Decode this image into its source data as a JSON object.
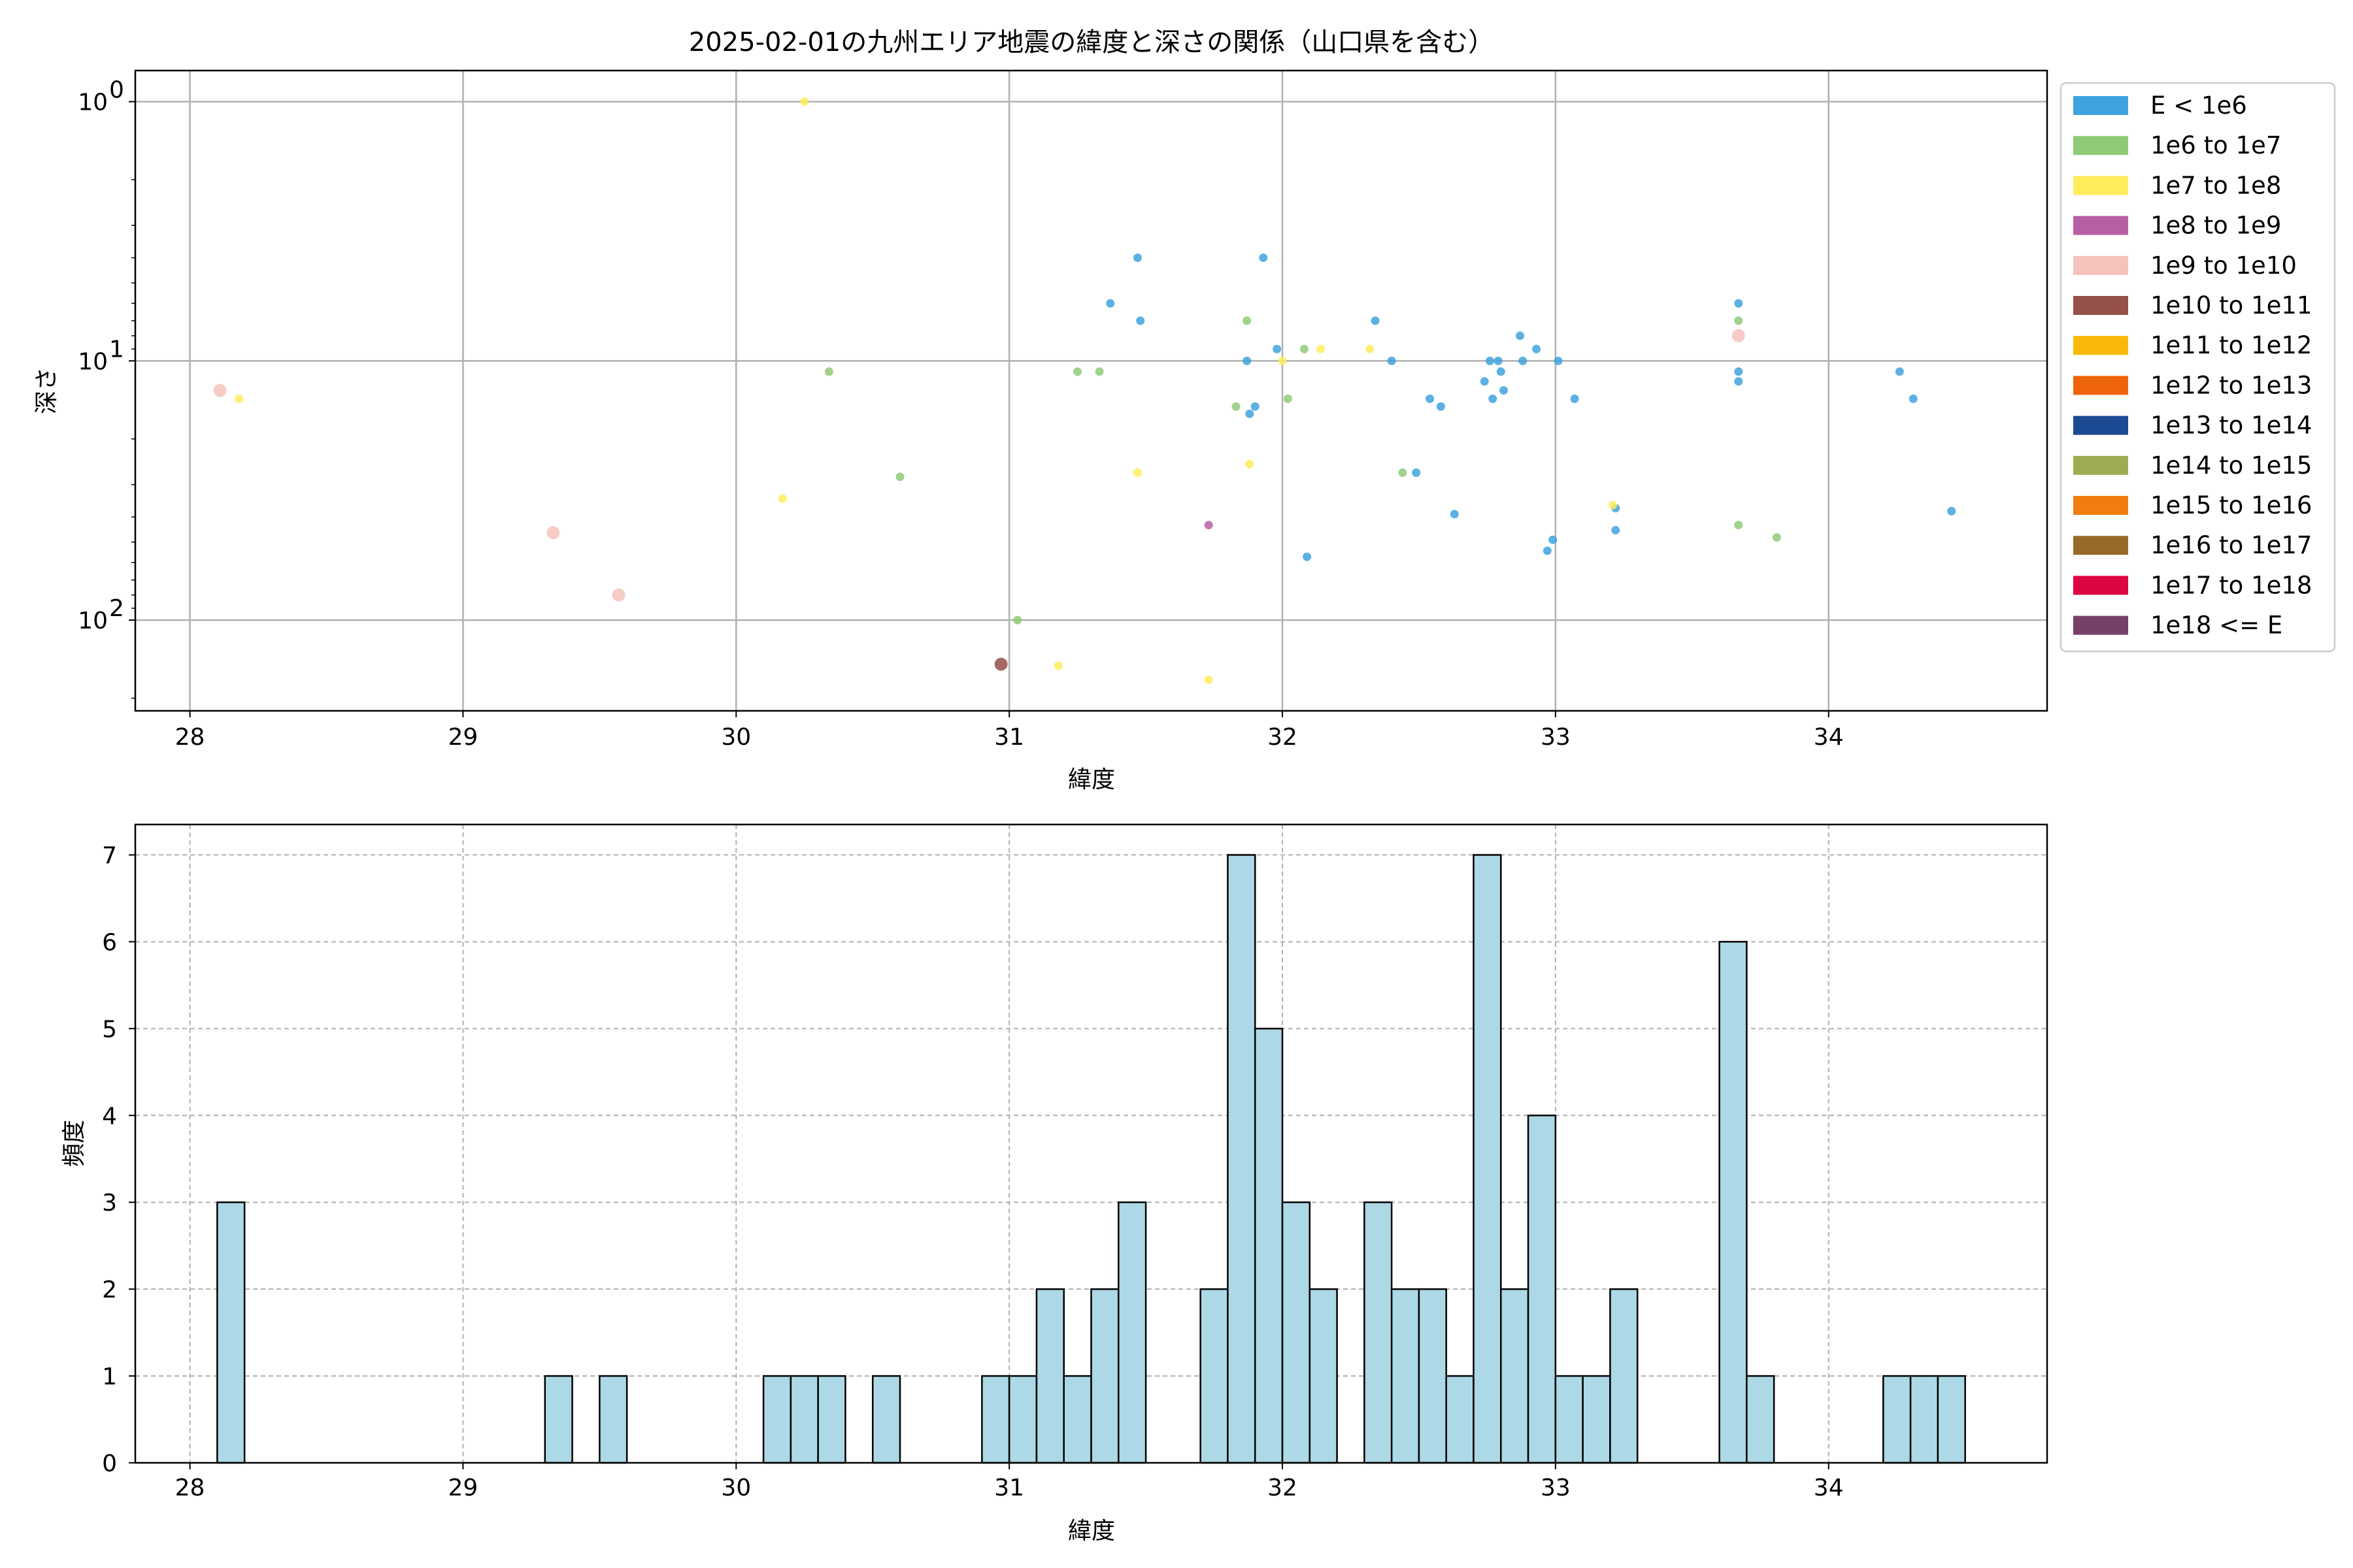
{
  "chart_data": [
    {
      "type": "scatter",
      "title": "2025-02-01の九州エリア地震の緯度と深さの関係（山口県を含む）",
      "xlabel": "緯度",
      "ylabel": "深さ",
      "xlim": [
        27.8,
        34.8
      ],
      "ylim_log10": [
        2.35,
        -0.12
      ],
      "y_log_scale": true,
      "y_inverted": true,
      "grid": true,
      "xticks": [
        {
          "value": 28,
          "label": "28"
        },
        {
          "value": 29,
          "label": "29"
        },
        {
          "value": 30,
          "label": "30"
        },
        {
          "value": 31,
          "label": "31"
        },
        {
          "value": 32,
          "label": "32"
        },
        {
          "value": 33,
          "label": "33"
        },
        {
          "value": 34,
          "label": "34"
        }
      ],
      "yticks": [
        {
          "value": 1,
          "base": "10",
          "exp": "0"
        },
        {
          "value": 10,
          "base": "10",
          "exp": "1"
        },
        {
          "value": 100,
          "base": "10",
          "exp": "2"
        }
      ],
      "legend_position": "outside-right",
      "legend": [
        {
          "label": "E < 1e6",
          "color": "#3fa3dd"
        },
        {
          "label": "1e6 to 1e7",
          "color": "#8fca77"
        },
        {
          "label": "1e7 to 1e8",
          "color": "#ffec5a"
        },
        {
          "label": "1e8 to 1e9",
          "color": "#b65fa5"
        },
        {
          "label": "1e9 to 1e10",
          "color": "#f6c2bc"
        },
        {
          "label": "1e10 to 1e11",
          "color": "#955049"
        },
        {
          "label": "1e11 to 1e12",
          "color": "#f9b90a"
        },
        {
          "label": "1e12 to 1e13",
          "color": "#ee6409"
        },
        {
          "label": "1e13 to 1e14",
          "color": "#1c4a92"
        },
        {
          "label": "1e14 to 1e15",
          "color": "#9cad51"
        },
        {
          "label": "1e15 to 1e16",
          "color": "#f07d0d"
        },
        {
          "label": "1e16 to 1e17",
          "color": "#976a29"
        },
        {
          "label": "1e17 to 1e18",
          "color": "#dc0740"
        },
        {
          "label": "1e18 <= E",
          "color": "#764068"
        }
      ],
      "series": [
        {
          "class": 0,
          "points": [
            [
              31.37,
              6.0
            ],
            [
              31.47,
              4.0
            ],
            [
              31.48,
              7.0
            ],
            [
              31.87,
              10.0
            ],
            [
              31.93,
              4.0
            ],
            [
              31.98,
              9.0
            ],
            [
              31.88,
              16.0
            ],
            [
              31.9,
              15.0
            ],
            [
              32.09,
              57.0
            ],
            [
              32.34,
              7.0
            ],
            [
              32.4,
              10.0
            ],
            [
              32.49,
              27.0
            ],
            [
              32.54,
              14.0
            ],
            [
              32.58,
              15.0
            ],
            [
              32.63,
              39.0
            ],
            [
              32.74,
              12.0
            ],
            [
              32.76,
              10.0
            ],
            [
              32.77,
              14.0
            ],
            [
              32.79,
              10.0
            ],
            [
              32.8,
              11.0
            ],
            [
              32.81,
              13.0
            ],
            [
              32.87,
              8.0
            ],
            [
              32.88,
              10.0
            ],
            [
              32.93,
              9.0
            ],
            [
              33.01,
              10.0
            ],
            [
              32.97,
              54.0
            ],
            [
              32.99,
              49.0
            ],
            [
              33.07,
              14.0
            ],
            [
              33.22,
              37.0
            ],
            [
              33.22,
              45.0
            ],
            [
              33.67,
              6.0
            ],
            [
              33.67,
              11.0
            ],
            [
              33.67,
              12.0
            ],
            [
              34.26,
              11.0
            ],
            [
              34.31,
              14.0
            ],
            [
              34.45,
              38.0
            ]
          ]
        },
        {
          "class": 1,
          "points": [
            [
              30.34,
              11.0
            ],
            [
              30.6,
              28.0
            ],
            [
              31.03,
              100.0
            ],
            [
              31.25,
              11.0
            ],
            [
              31.33,
              11.0
            ],
            [
              31.83,
              15.0
            ],
            [
              31.87,
              7.0
            ],
            [
              32.02,
              14.0
            ],
            [
              32.08,
              9.0
            ],
            [
              32.44,
              27.0
            ],
            [
              33.67,
              7.0
            ],
            [
              33.67,
              43.0
            ],
            [
              33.81,
              48.0
            ]
          ]
        },
        {
          "class": 2,
          "points": [
            [
              28.18,
              14.0
            ],
            [
              30.25,
              1.0
            ],
            [
              30.17,
              34.0
            ],
            [
              31.18,
              150.0
            ],
            [
              31.47,
              27.0
            ],
            [
              31.73,
              170.0
            ],
            [
              31.88,
              25.0
            ],
            [
              32.0,
              10.0
            ],
            [
              32.14,
              9.0
            ],
            [
              32.32,
              9.0
            ],
            [
              33.21,
              36.0
            ]
          ]
        },
        {
          "class": 3,
          "points": [
            [
              31.73,
              43.0
            ]
          ]
        },
        {
          "class": 4,
          "points": [
            [
              28.11,
              13.0
            ],
            [
              29.33,
              46.0
            ],
            [
              29.57,
              80.0
            ],
            [
              33.67,
              8.0
            ]
          ]
        },
        {
          "class": 5,
          "points": [
            [
              30.97,
              148.0
            ]
          ]
        }
      ]
    },
    {
      "type": "bar",
      "title": "",
      "xlabel": "緯度",
      "ylabel": "頻度",
      "xlim": [
        27.8,
        34.8
      ],
      "ylim": [
        0,
        7.35
      ],
      "grid": true,
      "bin_width": 0.1,
      "bar_color": "#add8e6",
      "edge_color": "#000000",
      "xticks": [
        {
          "value": 28,
          "label": "28"
        },
        {
          "value": 29,
          "label": "29"
        },
        {
          "value": 30,
          "label": "30"
        },
        {
          "value": 31,
          "label": "31"
        },
        {
          "value": 32,
          "label": "32"
        },
        {
          "value": 33,
          "label": "33"
        },
        {
          "value": 34,
          "label": "34"
        }
      ],
      "yticks": [
        {
          "value": 0,
          "label": "0"
        },
        {
          "value": 1,
          "label": "1"
        },
        {
          "value": 2,
          "label": "2"
        },
        {
          "value": 3,
          "label": "3"
        },
        {
          "value": 4,
          "label": "4"
        },
        {
          "value": 5,
          "label": "5"
        },
        {
          "value": 6,
          "label": "6"
        },
        {
          "value": 7,
          "label": "7"
        }
      ],
      "bins": [
        {
          "x0": 28.1,
          "count": 3
        },
        {
          "x0": 29.3,
          "count": 1
        },
        {
          "x0": 29.5,
          "count": 1
        },
        {
          "x0": 30.1,
          "count": 1
        },
        {
          "x0": 30.2,
          "count": 1
        },
        {
          "x0": 30.3,
          "count": 1
        },
        {
          "x0": 30.5,
          "count": 1
        },
        {
          "x0": 30.9,
          "count": 1
        },
        {
          "x0": 31.0,
          "count": 1
        },
        {
          "x0": 31.1,
          "count": 2
        },
        {
          "x0": 31.2,
          "count": 1
        },
        {
          "x0": 31.3,
          "count": 2
        },
        {
          "x0": 31.4,
          "count": 3
        },
        {
          "x0": 31.7,
          "count": 2
        },
        {
          "x0": 31.8,
          "count": 7
        },
        {
          "x0": 31.9,
          "count": 5
        },
        {
          "x0": 32.0,
          "count": 3
        },
        {
          "x0": 32.1,
          "count": 2
        },
        {
          "x0": 32.3,
          "count": 3
        },
        {
          "x0": 32.4,
          "count": 2
        },
        {
          "x0": 32.5,
          "count": 2
        },
        {
          "x0": 32.6,
          "count": 1
        },
        {
          "x0": 32.7,
          "count": 7
        },
        {
          "x0": 32.8,
          "count": 2
        },
        {
          "x0": 32.9,
          "count": 4
        },
        {
          "x0": 33.0,
          "count": 1
        },
        {
          "x0": 33.1,
          "count": 1
        },
        {
          "x0": 33.2,
          "count": 2
        },
        {
          "x0": 33.6,
          "count": 6
        },
        {
          "x0": 33.7,
          "count": 1
        },
        {
          "x0": 34.2,
          "count": 1
        },
        {
          "x0": 34.3,
          "count": 1
        },
        {
          "x0": 34.4,
          "count": 1
        }
      ]
    }
  ]
}
